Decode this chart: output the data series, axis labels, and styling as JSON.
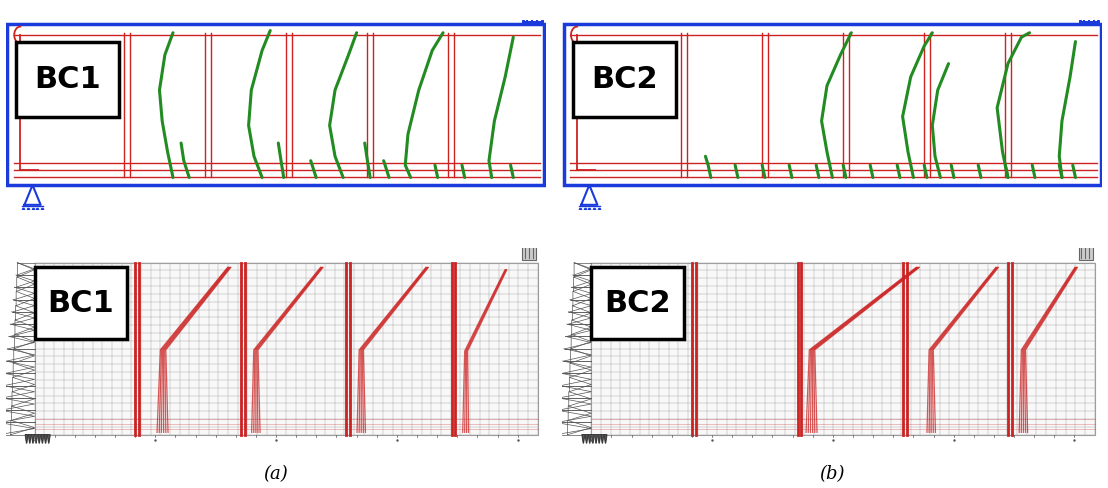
{
  "fig_width": 11.08,
  "fig_height": 4.88,
  "bg_color": "#ffffff",
  "label_a": "(a)",
  "label_b": "(b)",
  "label_bc1": "BC1",
  "label_bc2": "BC2",
  "blue_border": "#1a3adb",
  "red_color": "#cc2222",
  "green_color": "#228b22",
  "grid_color": "#999999",
  "panel_bg": "#f0f0f0"
}
